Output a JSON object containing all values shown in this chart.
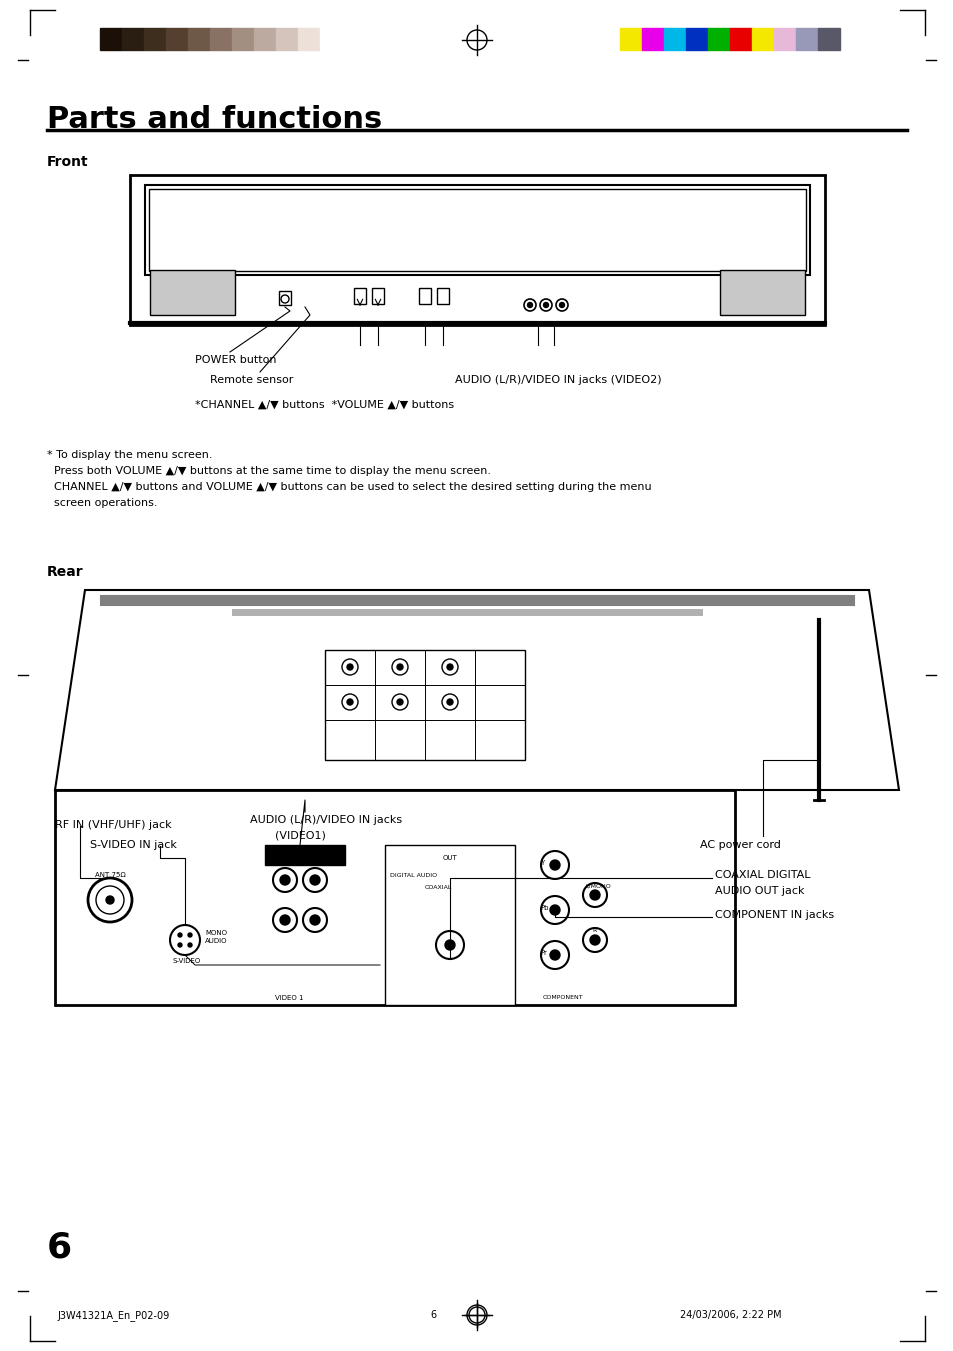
{
  "title": "Parts and functions",
  "title_fontsize": 22,
  "title_bold": true,
  "bg_color": "#ffffff",
  "text_color": "#000000",
  "front_label": "Front",
  "rear_label": "Rear",
  "page_number": "6",
  "footer_left": "J3W41321A_En_P02-09",
  "footer_center": "6",
  "footer_right": "24/03/2006, 2:22 PM",
  "note_lines": [
    "* To display the menu screen.",
    "  Press both VOLUME ▲/▼ buttons at the same time to display the menu screen.",
    "  CHANNEL ▲/▼ buttons and VOLUME ▲/▼ buttons can be used to select the desired setting during the menu",
    "  screen operations."
  ],
  "front_labels": [
    "POWER button",
    "Remote sensor",
    "*CHANNEL ▲/▼ buttons  *VOLUME ▲/▼ buttons",
    "AUDIO (L/R)/VIDEO IN jacks (VIDEO2)"
  ],
  "rear_labels": [
    "RF IN (VHF/UHF) jack",
    "S-VIDEO IN jack",
    "AUDIO (L/R)/VIDEO IN jacks\n(VIDEO1)",
    "AC power cord",
    "COAXIAL DIGITAL\nAUDIO OUT jack",
    "COMPONENT IN jacks"
  ],
  "color_bars_left": [
    "#1a1008",
    "#2a1e12",
    "#3d2e1e",
    "#554030",
    "#6e5848",
    "#897264",
    "#a38e82",
    "#bcaaa0",
    "#d4c4bc",
    "#ece0d8",
    "#ffffff"
  ],
  "color_bars_right": [
    "#f5e800",
    "#e800e8",
    "#00b8e8",
    "#0030c0",
    "#00b000",
    "#e80000",
    "#f5e800",
    "#e8b8d8",
    "#9898b8",
    "#585868"
  ]
}
